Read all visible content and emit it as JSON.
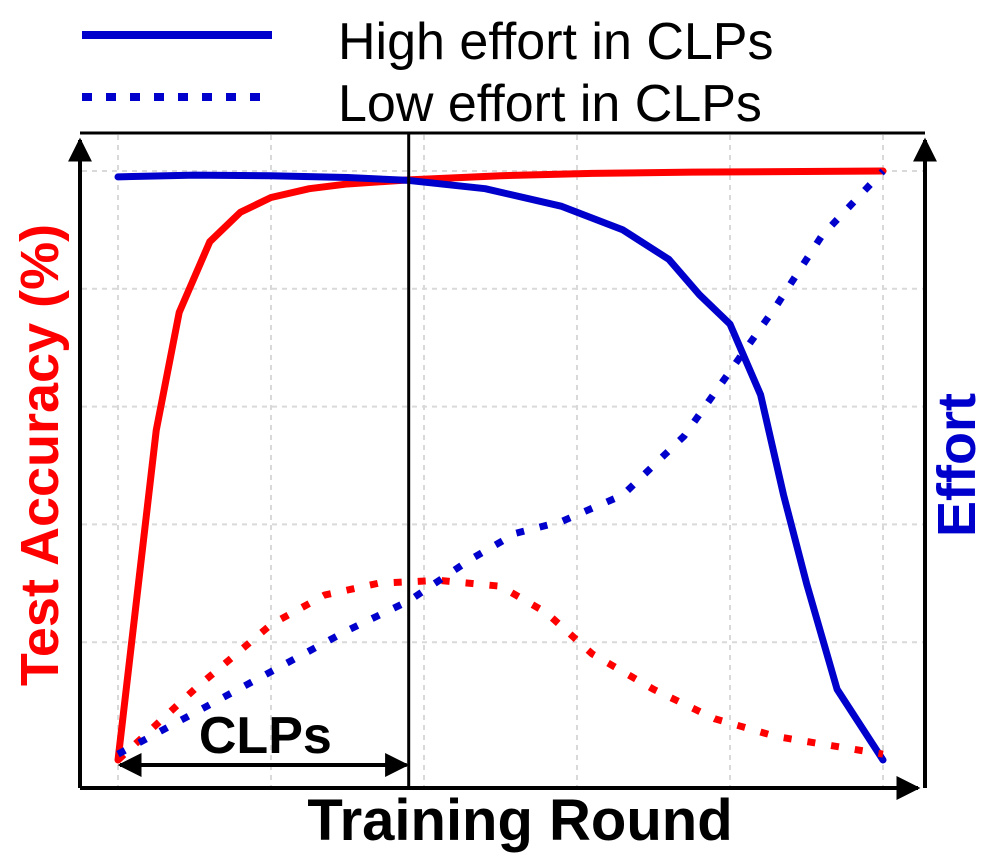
{
  "legend": {
    "high_label": "High effort in CLPs",
    "low_label": "Low effort in CLPs"
  },
  "colors": {
    "accuracy": "#ff0000",
    "effort": "#0000cc",
    "axis": "#000000",
    "grid": "#d9d9d9"
  },
  "chart_data": {
    "type": "line",
    "xlabel": "Training Round",
    "ylabel_left": "Test Accuracy (%)",
    "ylabel_right": "Effort",
    "x_range": [
      0,
      100
    ],
    "y_range": [
      0,
      100
    ],
    "grid": true,
    "legend_placement": "top",
    "annotation": {
      "label": "CLPs",
      "x_start": 0,
      "x_end": 38
    },
    "series": [
      {
        "name": "High effort in CLPs",
        "metric": "accuracy",
        "style": "solid",
        "points": [
          [
            0,
            0
          ],
          [
            5,
            56
          ],
          [
            8,
            76
          ],
          [
            12,
            88
          ],
          [
            16,
            93
          ],
          [
            20,
            95.5
          ],
          [
            25,
            97
          ],
          [
            30,
            97.8
          ],
          [
            38,
            98.5
          ],
          [
            50,
            99.2
          ],
          [
            62,
            99.6
          ],
          [
            75,
            99.8
          ],
          [
            100,
            100
          ]
        ]
      },
      {
        "name": "High effort in CLPs",
        "metric": "effort",
        "style": "solid",
        "points": [
          [
            0,
            99
          ],
          [
            10,
            99.3
          ],
          [
            20,
            99.2
          ],
          [
            30,
            98.9
          ],
          [
            38,
            98.4
          ],
          [
            48,
            97
          ],
          [
            58,
            94
          ],
          [
            66,
            90
          ],
          [
            72,
            85
          ],
          [
            76,
            79
          ],
          [
            80,
            74
          ],
          [
            84,
            62
          ],
          [
            87,
            45
          ],
          [
            90,
            30
          ],
          [
            94,
            12
          ],
          [
            100,
            0
          ]
        ]
      },
      {
        "name": "Low effort in CLPs",
        "metric": "accuracy",
        "style": "dotted",
        "points": [
          [
            0,
            0
          ],
          [
            10,
            12
          ],
          [
            20,
            23
          ],
          [
            27,
            28
          ],
          [
            34,
            30
          ],
          [
            42,
            30.5
          ],
          [
            50,
            29.5
          ],
          [
            56,
            25
          ],
          [
            62,
            18
          ],
          [
            70,
            12
          ],
          [
            78,
            7
          ],
          [
            86,
            4
          ],
          [
            100,
            1
          ]
        ]
      },
      {
        "name": "Low effort in CLPs",
        "metric": "effort",
        "style": "dotted",
        "points": [
          [
            0,
            1
          ],
          [
            10,
            8
          ],
          [
            20,
            15
          ],
          [
            30,
            22
          ],
          [
            38,
            27
          ],
          [
            46,
            34
          ],
          [
            52,
            38.5
          ],
          [
            58,
            40.5
          ],
          [
            66,
            45
          ],
          [
            74,
            55
          ],
          [
            80,
            66
          ],
          [
            86,
            77
          ],
          [
            92,
            89
          ],
          [
            100,
            100
          ]
        ]
      }
    ]
  }
}
